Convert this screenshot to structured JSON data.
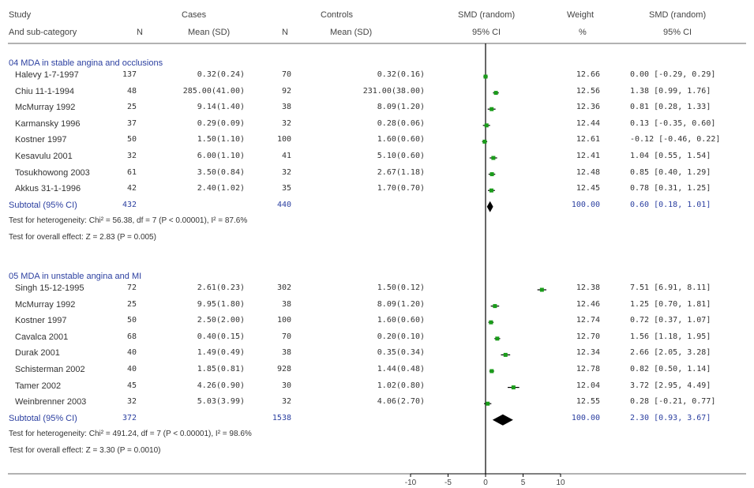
{
  "header": {
    "study": "Study",
    "subcat": "And sub-category",
    "cases": "Cases",
    "controls": "Controls",
    "n1": "N",
    "mean1": "Mean (SD)",
    "n2": "N",
    "mean2": "Mean (SD)",
    "smd1": "SMD (random)",
    "ci1": "95% CI",
    "weight": "Weight",
    "pct": "%",
    "smd2": "SMD (random)",
    "ci2": "95% CI"
  },
  "chart_data": {
    "type": "forest",
    "xlim": [
      -10,
      10
    ],
    "ticks": [
      "-10",
      "-5",
      "0",
      "5",
      "10"
    ],
    "tick_values": [
      -10,
      -5,
      0,
      5,
      10
    ],
    "groups": [
      {
        "title": "04 MDA in stable angina and occlusions",
        "studies": [
          {
            "name": "Halevy 1-7-1997",
            "n1": "137",
            "m1": "0.32(0.24)",
            "n2": "70",
            "m2": "0.32(0.16)",
            "weight": "12.66",
            "ci": "0.00 [-0.29, 0.29]",
            "smd": 0.0,
            "lo": -0.29,
            "hi": 0.29
          },
          {
            "name": "Chiu 11-1-1994",
            "n1": "48",
            "m1": "285.00(41.00)",
            "n2": "92",
            "m2": "231.00(38.00)",
            "weight": "12.56",
            "ci": "1.38 [0.99, 1.76]",
            "smd": 1.38,
            "lo": 0.99,
            "hi": 1.76
          },
          {
            "name": "McMurray 1992",
            "n1": "25",
            "m1": "9.14(1.40)",
            "n2": "38",
            "m2": "8.09(1.20)",
            "weight": "12.36",
            "ci": "0.81 [0.28, 1.33]",
            "smd": 0.81,
            "lo": 0.28,
            "hi": 1.33
          },
          {
            "name": "Karmansky 1996",
            "n1": "37",
            "m1": "0.29(0.09)",
            "n2": "32",
            "m2": "0.28(0.06)",
            "weight": "12.44",
            "ci": "0.13 [-0.35, 0.60]",
            "smd": 0.13,
            "lo": -0.35,
            "hi": 0.6
          },
          {
            "name": "Kostner 1997",
            "n1": "50",
            "m1": "1.50(1.10)",
            "n2": "100",
            "m2": "1.60(0.60)",
            "weight": "12.61",
            "ci": "-0.12 [-0.46, 0.22]",
            "smd": -0.12,
            "lo": -0.46,
            "hi": 0.22
          },
          {
            "name": "Kesavulu 2001",
            "n1": "32",
            "m1": "6.00(1.10)",
            "n2": "41",
            "m2": "5.10(0.60)",
            "weight": "12.41",
            "ci": "1.04 [0.55, 1.54]",
            "smd": 1.04,
            "lo": 0.55,
            "hi": 1.54
          },
          {
            "name": "Tosukhowong 2003",
            "n1": "61",
            "m1": "3.50(0.84)",
            "n2": "32",
            "m2": "2.67(1.18)",
            "weight": "12.48",
            "ci": "0.85 [0.40, 1.29]",
            "smd": 0.85,
            "lo": 0.4,
            "hi": 1.29
          },
          {
            "name": "Akkus 31-1-1996",
            "n1": "42",
            "m1": "2.40(1.02)",
            "n2": "35",
            "m2": "1.70(0.70)",
            "weight": "12.45",
            "ci": "0.78 [0.31, 1.25]",
            "smd": 0.78,
            "lo": 0.31,
            "hi": 1.25
          }
        ],
        "subtotal": {
          "label": "Subtotal (95% CI)",
          "n1": "432",
          "n2": "440",
          "weight": "100.00",
          "ci": "0.60 [0.18, 1.01]",
          "smd": 0.6,
          "lo": 0.18,
          "hi": 1.01
        },
        "heterogeneity": "Test for heterogeneity: Chi² = 56.38, df = 7 (P < 0.00001), I² = 87.6%",
        "overall": "Test for overall effect: Z = 2.83 (P = 0.005)"
      },
      {
        "title": "05 MDA in unstable angina and MI",
        "studies": [
          {
            "name": "Singh 15-12-1995",
            "n1": "72",
            "m1": "2.61(0.23)",
            "n2": "302",
            "m2": "1.50(0.12)",
            "weight": "12.38",
            "ci": "7.51 [6.91, 8.11]",
            "smd": 7.51,
            "lo": 6.91,
            "hi": 8.11
          },
          {
            "name": "McMurray 1992",
            "n1": "25",
            "m1": "9.95(1.80)",
            "n2": "38",
            "m2": "8.09(1.20)",
            "weight": "12.46",
            "ci": "1.25 [0.70, 1.81]",
            "smd": 1.25,
            "lo": 0.7,
            "hi": 1.81
          },
          {
            "name": "Kostner 1997",
            "n1": "50",
            "m1": "2.50(2.00)",
            "n2": "100",
            "m2": "1.60(0.60)",
            "weight": "12.74",
            "ci": "0.72 [0.37, 1.07]",
            "smd": 0.72,
            "lo": 0.37,
            "hi": 1.07
          },
          {
            "name": "Cavalca 2001",
            "n1": "68",
            "m1": "0.40(0.15)",
            "n2": "70",
            "m2": "0.20(0.10)",
            "weight": "12.70",
            "ci": "1.56 [1.18, 1.95]",
            "smd": 1.56,
            "lo": 1.18,
            "hi": 1.95
          },
          {
            "name": "Durak 2001",
            "n1": "40",
            "m1": "1.49(0.49)",
            "n2": "38",
            "m2": "0.35(0.34)",
            "weight": "12.34",
            "ci": "2.66 [2.05, 3.28]",
            "smd": 2.66,
            "lo": 2.05,
            "hi": 3.28
          },
          {
            "name": "Schisterman 2002",
            "n1": "40",
            "m1": "1.85(0.81)",
            "n2": "928",
            "m2": "1.44(0.48)",
            "weight": "12.78",
            "ci": "0.82 [0.50, 1.14]",
            "smd": 0.82,
            "lo": 0.5,
            "hi": 1.14
          },
          {
            "name": "Tamer 2002",
            "n1": "45",
            "m1": "4.26(0.90)",
            "n2": "30",
            "m2": "1.02(0.80)",
            "weight": "12.04",
            "ci": "3.72 [2.95, 4.49]",
            "smd": 3.72,
            "lo": 2.95,
            "hi": 4.49
          },
          {
            "name": "Weinbrenner 2003",
            "n1": "32",
            "m1": "5.03(3.99)",
            "n2": "32",
            "m2": "4.06(2.70)",
            "weight": "12.55",
            "ci": "0.28 [-0.21, 0.77]",
            "smd": 0.28,
            "lo": -0.21,
            "hi": 0.77
          }
        ],
        "subtotal": {
          "label": "Subtotal (95% CI)",
          "n1": "372",
          "n2": "1538",
          "weight": "100.00",
          "ci": "2.30 [0.93, 3.67]",
          "smd": 2.3,
          "lo": 0.93,
          "hi": 3.67
        },
        "heterogeneity": "Test for heterogeneity: Chi² = 491.24, df = 7 (P < 0.00001), I² = 98.6%",
        "overall": "Test for overall effect: Z = 3.30 (P = 0.0010)"
      }
    ],
    "colors": {
      "square": "#1a9c1a",
      "diamond": "#000000",
      "group_text": "#2b3fa0"
    }
  }
}
